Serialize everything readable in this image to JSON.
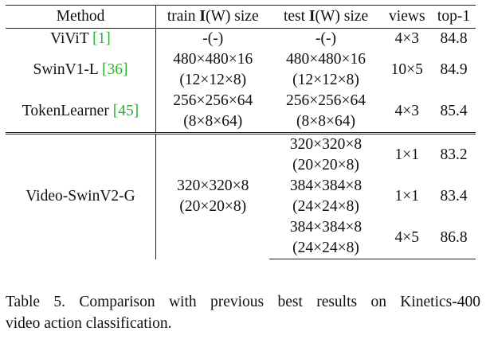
{
  "table": {
    "headers": {
      "method": "Method",
      "train_prefix": "train ",
      "train_symbol": "I",
      "train_suffix": "(W) size",
      "test_prefix": "test ",
      "test_symbol": "I",
      "test_suffix": "(W) size",
      "views": "views",
      "top1": "top-1"
    },
    "rows": [
      {
        "method": "ViViT ",
        "cite": "[1]",
        "train_line1": "-(-)",
        "test_line1": "-(-)",
        "views": "4×3",
        "top1": "84.8"
      },
      {
        "method": "SwinV1-L ",
        "cite": "[36]",
        "train_line1": "480×480×16",
        "train_line2": "(12×12×8)",
        "test_line1": "480×480×16",
        "test_line2": "(12×12×8)",
        "views": "10×5",
        "top1": "84.9"
      },
      {
        "method": "TokenLearner ",
        "cite": "[45]",
        "train_line1": "256×256×64",
        "train_line2": "(8×8×64)",
        "test_line1": "256×256×64",
        "test_line2": "(8×8×64)",
        "views": "4×3",
        "top1": "85.4"
      }
    ],
    "ours": {
      "method": "Video-SwinV2-G",
      "train_line1": "320×320×8",
      "train_line2": "(20×20×8)",
      "variants": [
        {
          "test_line1": "320×320×8",
          "test_line2": "(20×20×8)",
          "views": "1×1",
          "top1": "83.2"
        },
        {
          "test_line1": "384×384×8",
          "test_line2": "(24×24×8)",
          "views": "1×1",
          "top1": "83.4"
        },
        {
          "test_line1": "384×384×8",
          "test_line2": "(24×24×8)",
          "views": "4×5",
          "top1": "86.8"
        }
      ]
    }
  },
  "caption": {
    "line1": "Table 5.  Comparison with previous best results on Kinetics-400",
    "line2": "video action classification."
  }
}
